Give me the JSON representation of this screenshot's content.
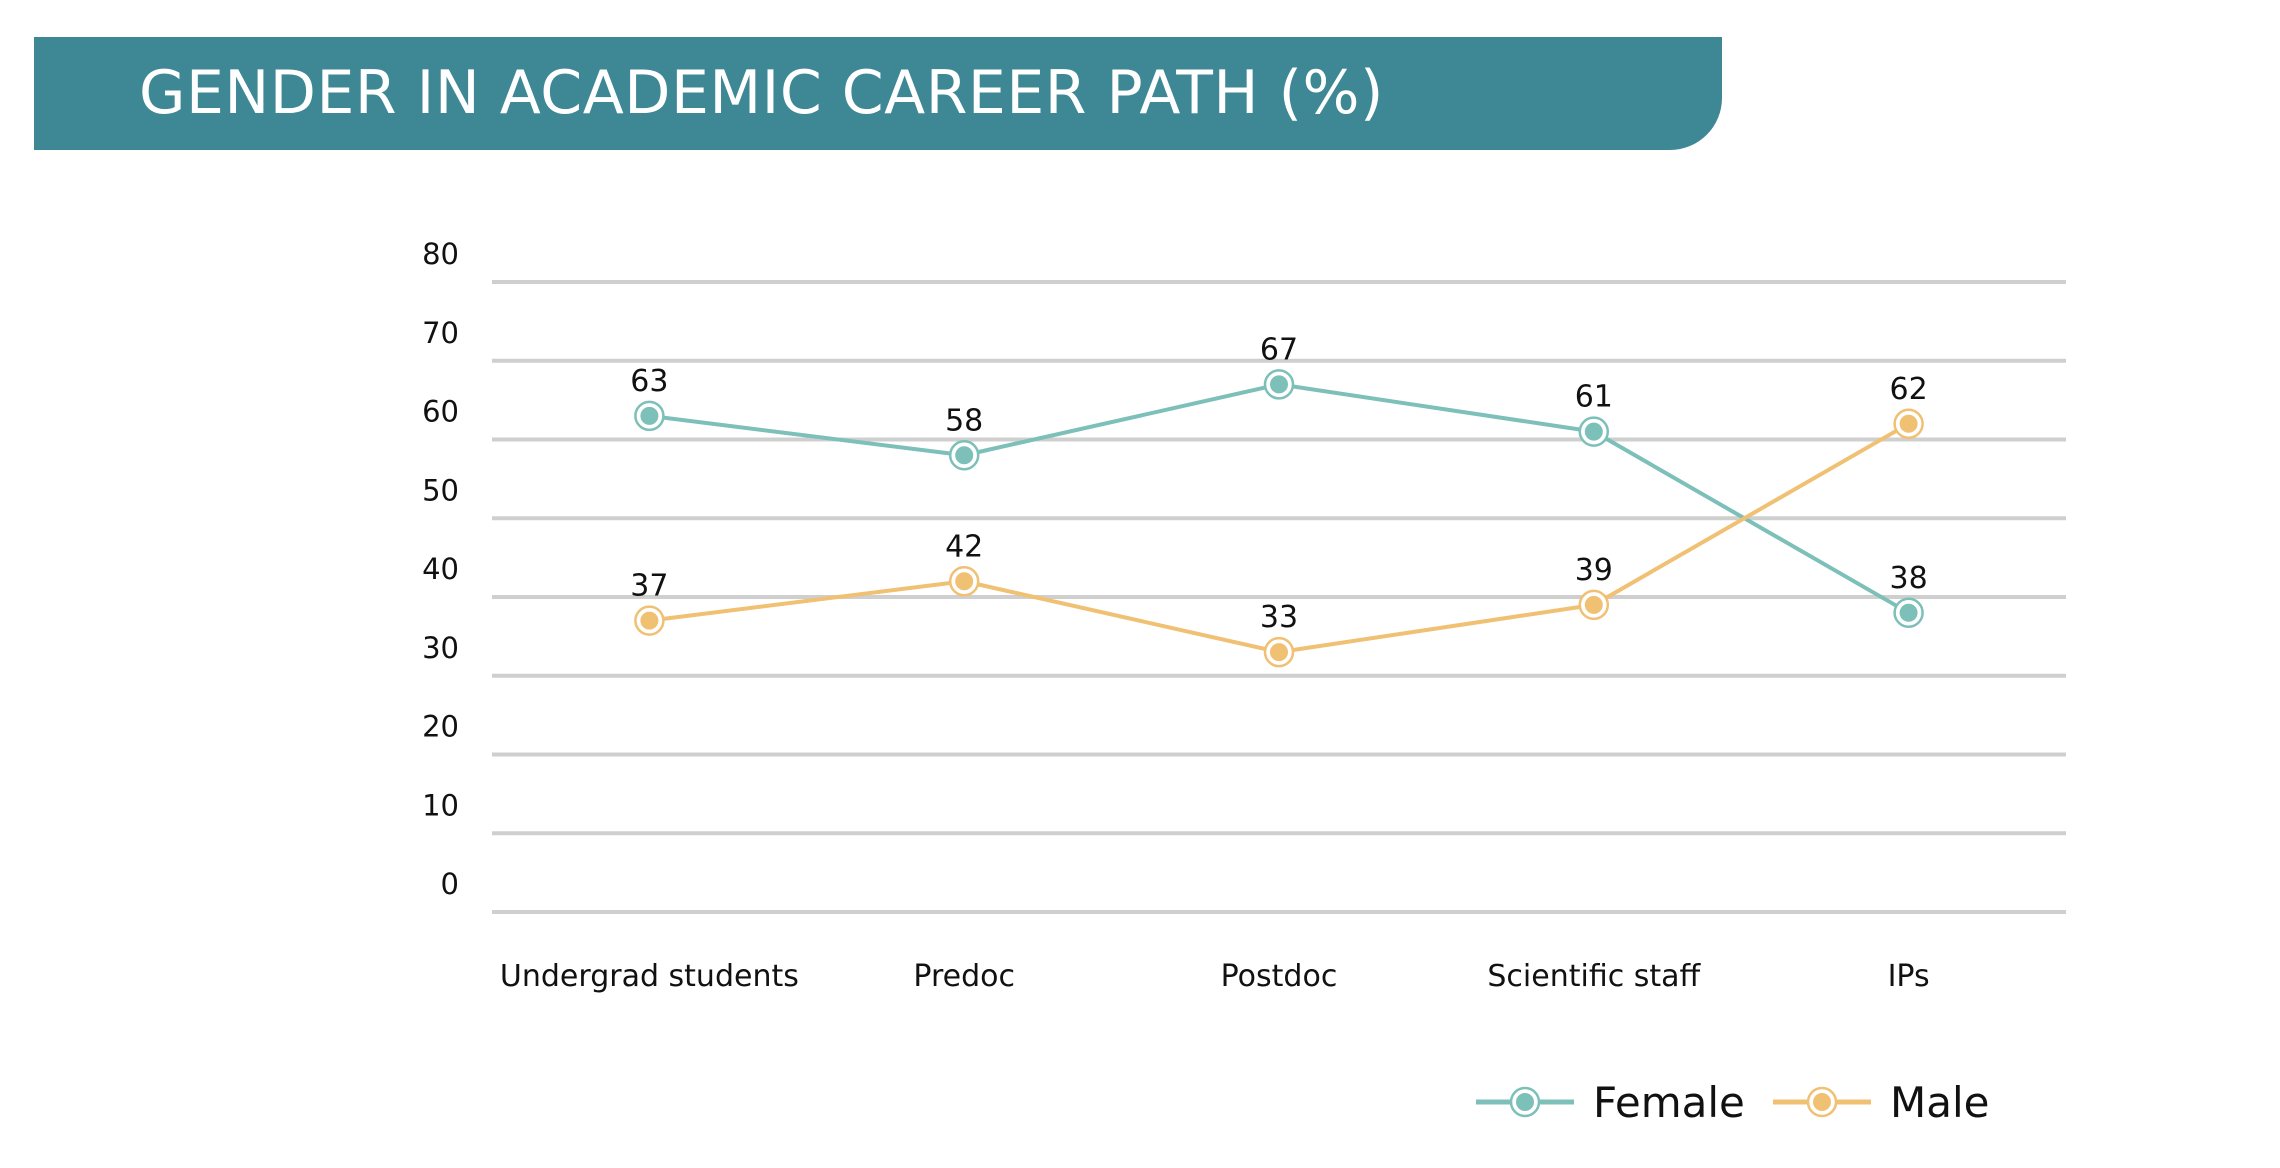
{
  "header": {
    "title": "GENDER IN ACADEMIC CAREER PATH (%)"
  },
  "colors": {
    "banner": "#3e8896",
    "banner_text": "#ffffff",
    "grid": "#cfcfcf",
    "female": "#7dbfb9",
    "male": "#f0c073"
  },
  "chart_data": {
    "type": "line",
    "title": "GENDER IN ACADEMIC CAREER PATH (%)",
    "xlabel": "",
    "ylabel": "",
    "categories": [
      "Undergrad students",
      "Predoc",
      "Postdoc",
      "Scientific staff",
      "IPs"
    ],
    "series": [
      {
        "name": "Female",
        "values": [
          63,
          58,
          67,
          61,
          38
        ]
      },
      {
        "name": "Male",
        "values": [
          37,
          42,
          33,
          39,
          62
        ]
      }
    ],
    "ylim": [
      0,
      80
    ],
    "yticks": [
      0,
      10,
      20,
      30,
      40,
      50,
      60,
      70,
      80
    ],
    "grid": true,
    "legend": "bottom-right"
  }
}
